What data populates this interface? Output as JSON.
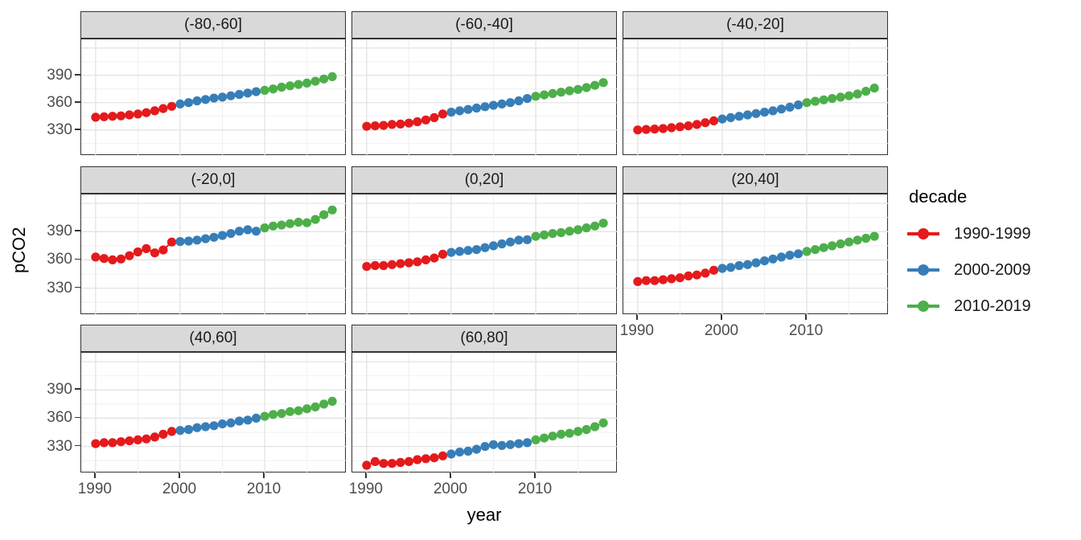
{
  "chart_data": {
    "type": "scatter",
    "title": "",
    "xlabel": "year",
    "ylabel": "pCO2",
    "grid": "on",
    "facet_variable": "latitude band",
    "years": [
      1990,
      1991,
      1992,
      1993,
      1994,
      1995,
      1996,
      1997,
      1998,
      1999,
      2000,
      2001,
      2002,
      2003,
      2004,
      2005,
      2006,
      2007,
      2008,
      2009,
      2010,
      2011,
      2012,
      2013,
      2014,
      2015,
      2016,
      2017,
      2018
    ],
    "xlim": [
      1988.3,
      2019.7
    ],
    "ylim": [
      301.5,
      429.5
    ],
    "xticks": [
      1990,
      2000,
      2010
    ],
    "yticks": [
      390,
      360,
      330
    ],
    "x_minor_gridlines": [
      1995,
      2005,
      2015
    ],
    "y_major_gridlines": [
      330,
      360,
      390,
      420
    ],
    "y_minor_gridlines": [
      315,
      345,
      375,
      405
    ],
    "legend": {
      "title": "decade",
      "position": "right",
      "entries": [
        {
          "label": "1990-1999",
          "color": "#E41A1C"
        },
        {
          "label": "2000-2009",
          "color": "#377EB8"
        },
        {
          "label": "2010-2019",
          "color": "#4DAF4A"
        }
      ]
    },
    "decade_breaks": [
      {
        "name": "1990-1999",
        "color": "#E41A1C",
        "first_index": 0,
        "last_index": 9
      },
      {
        "name": "2000-2009",
        "color": "#377EB8",
        "first_index": 10,
        "last_index": 19
      },
      {
        "name": "2010-2019",
        "color": "#4DAF4A",
        "first_index": 20,
        "last_index": 28
      }
    ],
    "facets": [
      {
        "label": "(-80,-60]",
        "values": [
          344,
          344.5,
          345,
          345.5,
          346.5,
          347.5,
          349,
          351,
          353.5,
          356,
          358.5,
          360,
          362,
          363.5,
          365,
          366,
          367.5,
          369,
          370.5,
          372,
          373.5,
          375,
          377,
          378.5,
          380,
          381.5,
          383.5,
          386,
          388.5
        ]
      },
      {
        "label": "(-60,-40]",
        "values": [
          334,
          334.5,
          335,
          336,
          336.5,
          337.5,
          339,
          341,
          343.5,
          347.5,
          349.5,
          351,
          352.5,
          354,
          355.5,
          357,
          358.5,
          360,
          362,
          364.5,
          367,
          368.5,
          370,
          371.5,
          373,
          374.5,
          376.5,
          379,
          382
        ]
      },
      {
        "label": "(-40,-20]",
        "values": [
          330,
          330.5,
          331,
          331.5,
          332.5,
          333.5,
          334.5,
          336,
          338,
          340,
          342,
          343.5,
          345,
          346.5,
          348,
          349.5,
          351,
          353,
          355,
          357.5,
          360,
          361.5,
          363,
          364.5,
          366,
          367.5,
          369.5,
          372.5,
          376
        ]
      },
      {
        "label": "(-20,0]",
        "values": [
          363,
          361.5,
          360,
          361,
          364.5,
          368.5,
          372,
          367.5,
          370.5,
          379,
          379.5,
          380,
          381,
          382.5,
          384,
          386,
          388,
          390.5,
          392,
          390.5,
          394,
          396,
          397,
          398.5,
          400,
          399.5,
          403,
          408,
          413
        ]
      },
      {
        "label": "(0,20]",
        "values": [
          353,
          354,
          354,
          355,
          356,
          357,
          358,
          360,
          362,
          366,
          368,
          369,
          370,
          371,
          373,
          375,
          377,
          379,
          381,
          381.5,
          385,
          386.5,
          388,
          389,
          390.5,
          392,
          394,
          396,
          399
        ]
      },
      {
        "label": "(20,40]",
        "values": [
          337,
          338,
          338,
          339,
          340,
          341,
          343,
          344,
          346,
          349,
          351,
          352,
          354,
          355,
          357,
          359,
          361,
          363,
          365,
          366.5,
          369,
          371,
          373,
          375,
          377,
          379,
          381,
          383,
          385
        ]
      },
      {
        "label": "(40,60]",
        "values": [
          333,
          334,
          334,
          335,
          336,
          337,
          338,
          340,
          343,
          346,
          347,
          348,
          350,
          351,
          352,
          354,
          355,
          357,
          358,
          360,
          362,
          364,
          365,
          367,
          368,
          370,
          372,
          375,
          378
        ]
      },
      {
        "label": "(60,80]",
        "values": [
          310,
          314,
          312,
          312,
          313,
          314,
          316,
          317,
          318,
          320,
          322,
          324,
          325,
          327,
          330,
          332,
          331,
          332,
          333,
          334,
          337,
          339,
          341,
          343,
          344,
          346,
          348,
          351,
          355
        ]
      }
    ]
  },
  "colors": {
    "strip_background": "#d9d9d9",
    "panel_border": "#333333",
    "major_gridline": "#e3e3e3",
    "minor_gridline": "#efefef",
    "tick_text": "#4d4d4d"
  }
}
